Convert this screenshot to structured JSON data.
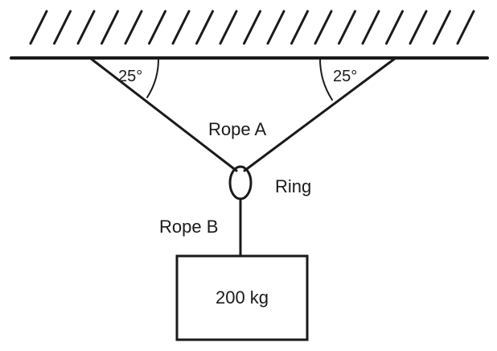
{
  "diagram": {
    "left_angle": "25°",
    "right_angle": "25°",
    "rope_a": "Rope A",
    "ring": "Ring",
    "rope_b": "Rope B",
    "mass": "200 kg"
  },
  "colors": {
    "ink": "#1a1a1a",
    "background": "#ffffff"
  }
}
